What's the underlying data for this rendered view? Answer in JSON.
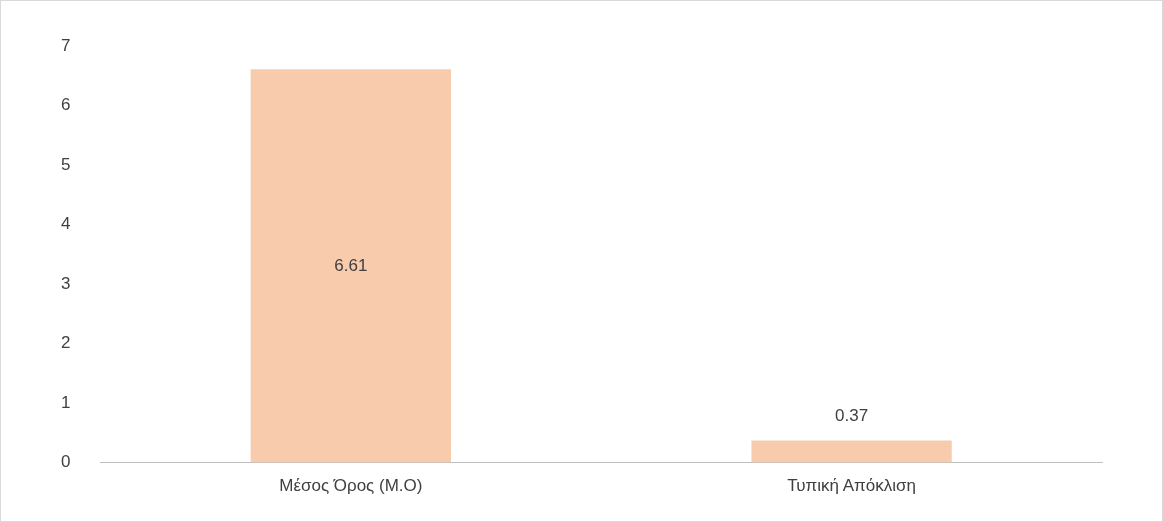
{
  "chart_data": {
    "type": "bar",
    "categories": [
      "Μέσος Όρος (Μ.Ο)",
      "Τυπική Απόκλιση"
    ],
    "values": [
      6.61,
      0.37
    ],
    "color": "#f8cbad",
    "ylim": [
      0,
      7
    ],
    "yticks": [
      0,
      1,
      2,
      3,
      4,
      5,
      6,
      7
    ],
    "grid": false,
    "legend": false,
    "data_labels": true
  }
}
